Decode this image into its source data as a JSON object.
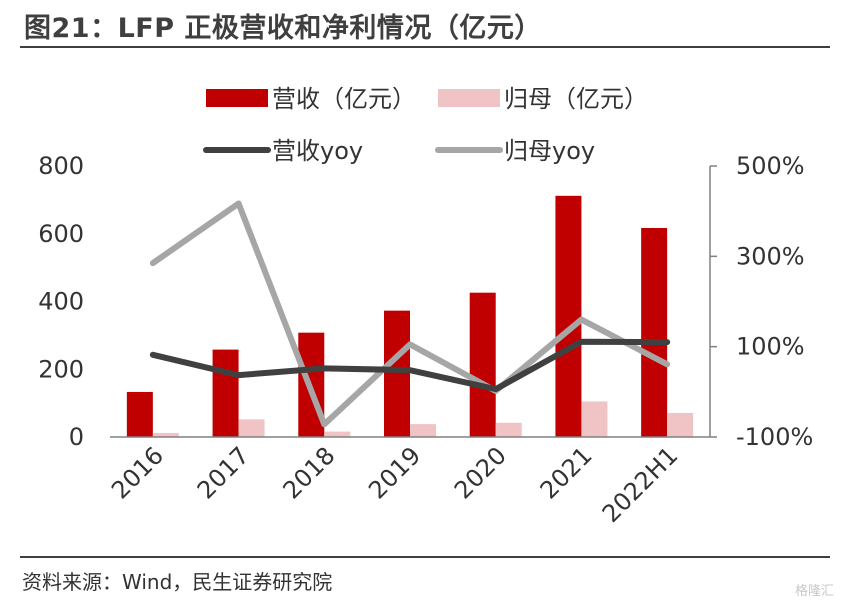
{
  "title": "图21：LFP 正极营收和净利情况（亿元）",
  "source": "资料来源：Wind，民生证券研究院",
  "watermark": "格隆汇",
  "chart_data": {
    "type": "bar",
    "categories": [
      "2016",
      "2017",
      "2018",
      "2019",
      "2020",
      "2021",
      "2022H1"
    ],
    "series": [
      {
        "name": "营收（亿元）",
        "kind": "bar",
        "axis": "left",
        "color": "#c00000",
        "values": [
          133,
          258,
          308,
          373,
          426,
          712,
          617
        ]
      },
      {
        "name": "归母（亿元）",
        "kind": "bar",
        "axis": "left",
        "color": "#f0c4c4",
        "values": [
          12,
          52,
          16,
          38,
          42,
          105,
          71
        ]
      },
      {
        "name": "营收yoy",
        "kind": "line",
        "axis": "right",
        "color": "#404040",
        "values": [
          82,
          37,
          52,
          48,
          6,
          111,
          110
        ]
      },
      {
        "name": "归母yoy",
        "kind": "line",
        "axis": "right",
        "color": "#a6a6a6",
        "values": [
          285,
          417,
          -72,
          105,
          2,
          160,
          61
        ]
      }
    ],
    "y_left": {
      "ylim": [
        0,
        800
      ],
      "ticks": [
        0,
        200,
        400,
        600,
        800
      ]
    },
    "y_right": {
      "ylim": [
        -100,
        500
      ],
      "ticks": [
        "-100%",
        "100%",
        "300%",
        "500%"
      ],
      "tick_values": [
        -100,
        100,
        300,
        500
      ]
    },
    "legend_position": "top",
    "grid": false
  }
}
